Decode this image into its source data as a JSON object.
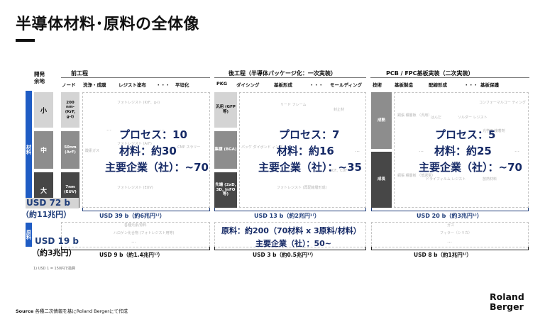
{
  "title": "半導体材料･原料の全体像",
  "header": {
    "dev_margin": [
      "開発",
      "余地"
    ],
    "front_process": "前工程",
    "back_process": "後工程（半導体パッケージ化：一次実装）",
    "pcb_process": "PCB / FPC基板実装（二次実装）"
  },
  "front_cols": [
    "ノード",
    "洗浄・成膜",
    "レジスト塗布",
    "・・・",
    "平坦化"
  ],
  "back_cols": [
    "PKG",
    "ダイシング",
    "基板形成",
    "・・・",
    "モールディング"
  ],
  "pcb_cols": [
    "技術",
    "基板製造",
    "配線形成",
    "・・・",
    "基板保護"
  ],
  "side_labels": {
    "materials": "材料",
    "raw": "原料"
  },
  "row_labels": [
    "小",
    "中",
    "大"
  ],
  "nodes": [
    {
      "text": "200 nm- (KrF, g-i)"
    },
    {
      "text": "50nm (ArF)"
    },
    {
      "text": "7nm (EUV)"
    }
  ],
  "pkg": [
    {
      "text": "汎用 (GFP等)"
    },
    {
      "text": "集積 (BGA)"
    },
    {
      "text": "先端 (2xD, 3D, InFO等)"
    }
  ],
  "tech": [
    {
      "text": "成熟"
    },
    {
      "text": "成長"
    }
  ],
  "front_overlay": {
    "process": "プロセス：10",
    "materials": "材料：約30",
    "companies": "主要企業（社）：~70"
  },
  "back_overlay": {
    "process": "プロセス：7",
    "materials": "材料：約16",
    "companies": "主要企業（社）：~35"
  },
  "pcb_overlay": {
    "process": "プロセス：5",
    "materials": "材料：約25",
    "companies": "主要企業（社）：~70"
  },
  "raw_overlay": {
    "materials": "原料：約200（70材料 x 3原料/材料）",
    "companies": "主要企業（社）：50~"
  },
  "faint": {
    "f1": "フォトレジスト (KrF、g-i)",
    "f2": "酸素ガス",
    "f3": "フォトレジスト (ArF)",
    "f4": "CMP スラリー",
    "f5": "フォトレジスト (EUV)",
    "b1": "リード フレーム",
    "b2": "封止材",
    "b3": "パッケ ダイボンド ィング",
    "b4": "フォトレジスト (再配線層形成)",
    "b5": "NCF、CUF",
    "p1": "コンフォーマルコー ティング",
    "p2": "銅張 積層板 （汎用）",
    "p3": "はんだ",
    "p4": "ソルダー レジスト",
    "p5": "光学用 接着剤",
    "p6": "銅張 積層板 （低誘電）",
    "p7": "ドライフィルム レジスト",
    "p8": "放熱材料",
    "r1": "各種元素/原料",
    "r2": "ハロゲン化合物 (フォトレジスト用等)",
    "r3": "ガス",
    "r4": "フィラー（シリカ）"
  },
  "totals": {
    "front_mat": "USD 39 b（約6兆円¹⁾）",
    "back_mat": "USD 13 b（約2兆円¹⁾）",
    "pcb_mat": "USD 20 b（約3兆円¹⁾）",
    "front_raw": "USD 9 b（約1.4兆円¹⁾）",
    "back_raw": "USD 3 b（約0.5兆円¹⁾）",
    "pcb_raw": "USD 8 b（約1兆円¹⁾）",
    "mat_big_usd": "USD 72 b",
    "mat_big_jpy": "（約11兆円）",
    "raw_big_usd": "USD 19 b",
    "raw_big_jpy": "（約3兆円）"
  },
  "footnote": "1) USD 1 = 150円で換算",
  "source_label": "Source",
  "source_text": "各種二次情報を基にRoland Bergerにて作成",
  "brand": [
    "Roland",
    "Berger"
  ],
  "colors": {
    "navy": "#1f3d7a",
    "blue": "#1f5cc4",
    "gray_light": "#cfcfcf",
    "gray_mid": "#999999",
    "gray_dark": "#4f4f4f"
  }
}
